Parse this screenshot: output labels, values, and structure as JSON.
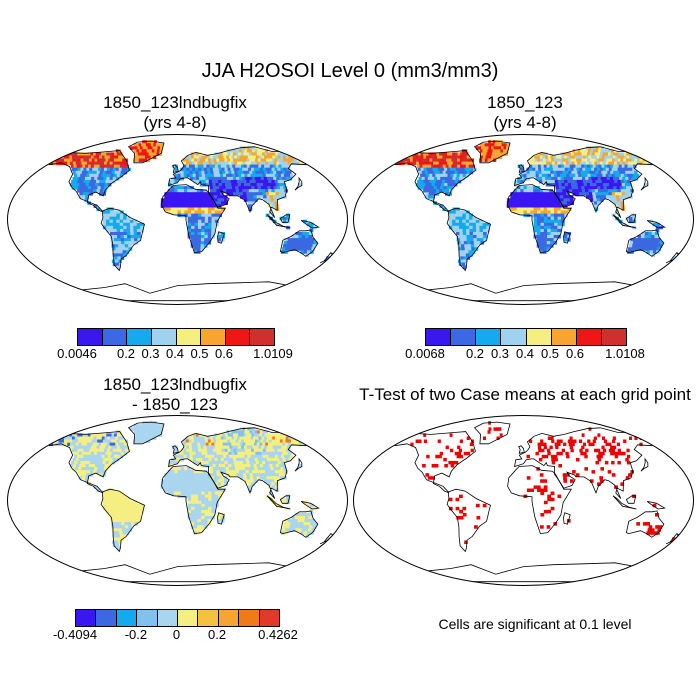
{
  "title": "JJA H2OSOI Level 0 (mm3/mm3)",
  "panels": [
    {
      "title_line1": "1850_123lndbugfix",
      "title_line2": "(yrs 4-8)",
      "scheme": "absolute",
      "colorbar": {
        "colors": [
          "#3a17f0",
          "#3a69e2",
          "#15aaee",
          "#9fd2ee",
          "#f5ef82",
          "#f6a533",
          "#f01616",
          "#cf2f2f"
        ],
        "labels": [
          "0.0046",
          "0.2",
          "0.3",
          "0.4",
          "0.5",
          "0.6",
          "1.0109"
        ]
      }
    },
    {
      "title_line1": "1850_123",
      "title_line2": "(yrs 4-8)",
      "scheme": "absolute",
      "colorbar": {
        "colors": [
          "#3a17f0",
          "#3a69e2",
          "#15aaee",
          "#9fd2ee",
          "#f5ef82",
          "#f6a533",
          "#f01616",
          "#cf2f2f"
        ],
        "labels": [
          "0.0068",
          "0.2",
          "0.3",
          "0.4",
          "0.5",
          "0.6",
          "1.0108"
        ]
      }
    },
    {
      "title_line1": "1850_123lndbugfix",
      "title_line2": "- 1850_123",
      "scheme": "difference",
      "colorbar": {
        "colors": [
          "#3a17f0",
          "#3a69e2",
          "#15aaee",
          "#7fc2f0",
          "#a9d5ef",
          "#f5ef82",
          "#f6c040",
          "#f6a533",
          "#f07a16",
          "#e03a2a"
        ],
        "labels": [
          "-0.4094",
          "-0.2",
          "0",
          "0.2",
          "0.4262"
        ]
      }
    },
    {
      "title_line1": "T-Test of two Case means at each grid point",
      "scheme": "ttest",
      "note": "Cells are significant at 0.1 level"
    }
  ]
}
